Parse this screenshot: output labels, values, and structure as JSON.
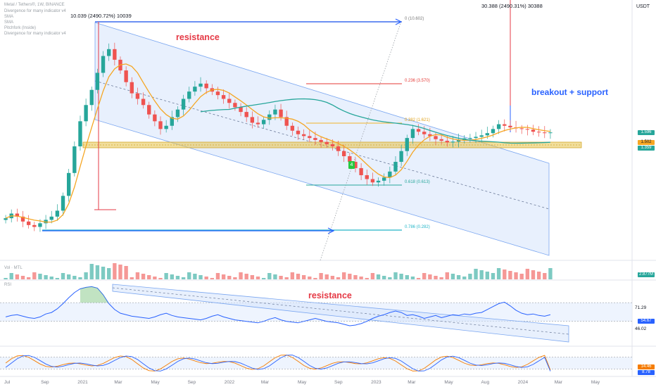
{
  "header": {
    "symbol_line": "Metal / Tethers®, 1W, BINANCE",
    "indicators": [
      "Divergence for many indicator v4",
      "SMA",
      "SMA",
      "Pitchfork (Inside)",
      "Divergence for many indicator v4"
    ],
    "currency": "USDT"
  },
  "annotations": {
    "resistance_main": "resistance",
    "breakout": "breakout + support",
    "resistance_rsi": "resistance",
    "measure_left": "10.039 (2490.72%) 10039",
    "measure_right": "30.388 (2490.31%) 30388",
    "entry_marker": "4"
  },
  "fib_levels": [
    {
      "label": "0 (10.602)",
      "color": "#7a7a7a"
    },
    {
      "label": "0.236 (3.570)",
      "color": "#e53935"
    },
    {
      "label": "0.382 (1.621)",
      "color": "#f0b429"
    },
    {
      "label": "0.618 (0.613)",
      "color": "#26a69a"
    },
    {
      "label": "0.786 (0.282)",
      "color": "#22b5c8"
    }
  ],
  "price_labels": [
    "1.596",
    "1.502",
    "1.359"
  ],
  "volume_label": "Vol · MTL",
  "volume_value": "2.877M",
  "rsi_labels": {
    "title": "RSI",
    "upper": "71.29",
    "current": "54.67",
    "lower": "46.02"
  },
  "stoch_labels": {
    "k": "14.46",
    "d": "8.78"
  },
  "time_axis": [
    "Jul",
    "Sep",
    "2021",
    "Mar",
    "May",
    "Sep",
    "2022",
    "Mar",
    "May",
    "Sep",
    "2023",
    "Mar",
    "May",
    "Aug",
    "2024",
    "Mar",
    "May"
  ],
  "colors": {
    "up": "#26a69a",
    "down": "#ef5350",
    "sma_fast": "#f5a623",
    "sma_slow": "#26a69a",
    "rsi": "#2962ff",
    "channel_fill": "#d6e4fb",
    "support_band": "#e6c34a",
    "annotation_red": "#e53945",
    "annotation_blue": "#2962ff"
  },
  "chart_data": {
    "type": "candlestick",
    "title": "Metal / Tethers®, 1W, BINANCE",
    "currency": "USDT",
    "series": [
      {
        "name": "Price (weekly close, approx.)",
        "values": [
          0.35,
          0.38,
          0.36,
          0.33,
          0.31,
          0.3,
          0.32,
          0.34,
          0.36,
          0.4,
          0.52,
          0.78,
          1.25,
          1.95,
          2.6,
          3.4,
          4.6,
          6.2,
          7.0,
          5.8,
          4.8,
          3.9,
          3.2,
          2.9,
          2.6,
          2.2,
          1.95,
          1.7,
          1.8,
          2.1,
          2.4,
          2.9,
          3.3,
          3.6,
          3.8,
          3.5,
          3.3,
          3.1,
          2.9,
          2.7,
          2.5,
          2.3,
          2.1,
          1.9,
          1.85,
          2.0,
          2.2,
          2.4,
          2.1,
          1.8,
          1.65,
          1.55,
          1.5,
          1.45,
          1.4,
          1.35,
          1.3,
          1.25,
          1.15,
          1.05,
          0.95,
          0.85,
          0.75,
          0.7,
          0.66,
          0.68,
          0.72,
          0.8,
          0.95,
          1.15,
          1.45,
          1.7,
          1.62,
          1.55,
          1.5,
          1.42,
          1.38,
          1.34,
          1.36,
          1.4,
          1.44,
          1.45,
          1.48,
          1.52,
          1.58,
          1.7,
          1.85,
          1.8,
          1.75,
          1.72,
          1.7,
          1.68,
          1.62,
          1.6,
          1.58,
          1.6
        ]
      }
    ],
    "fibonacci_retracement": [
      {
        "level": 0,
        "price": 10.602
      },
      {
        "level": 0.236,
        "price": 3.57
      },
      {
        "level": 0.382,
        "price": 1.621
      },
      {
        "level": 0.618,
        "price": 0.613
      },
      {
        "level": 0.786,
        "price": 0.282
      }
    ],
    "annotations": [
      "resistance",
      "breakout + support",
      "resistance"
    ],
    "measurements": [
      "10.039 (2490.72%) 10039",
      "30.388 (2490.31%) 30388"
    ],
    "price_scale_labels": [
      "1.596",
      "1.502",
      "1.359"
    ],
    "support_zone": [
      1.4,
      1.5
    ],
    "volume_last": "2.877M",
    "rsi": {
      "levels": [
        71.29,
        54.67,
        46.02
      ],
      "values": [
        52,
        54,
        55,
        53,
        51,
        50,
        52,
        56,
        58,
        63,
        70,
        78,
        85,
        90,
        92,
        93,
        91,
        82,
        70,
        62,
        57,
        55,
        53,
        52,
        51,
        50,
        52,
        55,
        57,
        54,
        52,
        51,
        50,
        49,
        48,
        50,
        53,
        55,
        52,
        50,
        48,
        47,
        46,
        45,
        44,
        46,
        49,
        51,
        48,
        46,
        45,
        44,
        46,
        48,
        50,
        48,
        46,
        45,
        44,
        42,
        40,
        41,
        43,
        46,
        50,
        53,
        55,
        58,
        60,
        58,
        54,
        55,
        53,
        50,
        52,
        54,
        51,
        53,
        55,
        54,
        56,
        55,
        57,
        58,
        62,
        66,
        70,
        72,
        67,
        61,
        57,
        55,
        56,
        54,
        53,
        55
      ]
    },
    "stochastic": {
      "k_last": 14.46,
      "d_last": 8.78
    }
  }
}
